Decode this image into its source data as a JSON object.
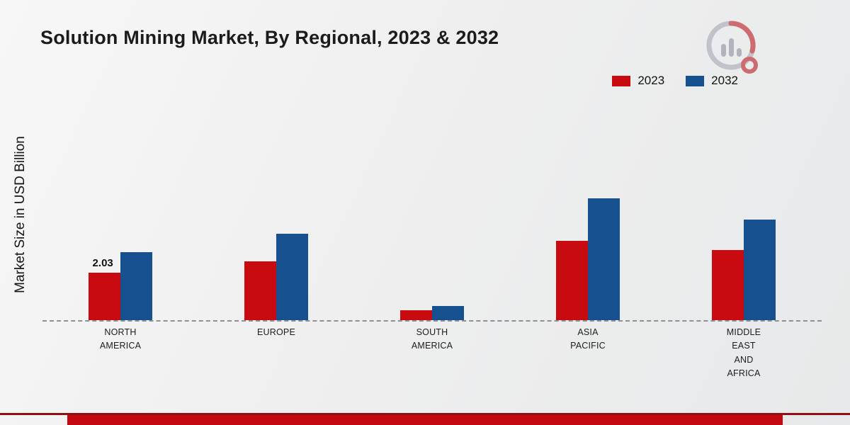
{
  "title": "Solution Mining Market, By Regional, 2023 & 2032",
  "ylabel": "Market Size in USD Billion",
  "legend": [
    {
      "label": "2023",
      "color": "#c70b10"
    },
    {
      "label": "2032",
      "color": "#17508e"
    }
  ],
  "chart_data": {
    "type": "bar",
    "title": "Solution Mining Market, By Regional, 2023 & 2032",
    "ylabel": "Market Size in USD Billion",
    "xlabel": "",
    "ylim": [
      0,
      5.5
    ],
    "grid": false,
    "legend_position": "top-right",
    "baseline_style": "dashed",
    "categories": [
      [
        "NORTH",
        "AMERICA"
      ],
      [
        "EUROPE"
      ],
      [
        "SOUTH",
        "AMERICA"
      ],
      [
        "ASIA",
        "PACIFIC"
      ],
      [
        "MIDDLE",
        "EAST",
        "AND",
        "AFRICA"
      ]
    ],
    "series": [
      {
        "name": "2023",
        "color": "#c70b10",
        "values": [
          2.03,
          2.5,
          0.42,
          3.4,
          3.0
        ],
        "labels": [
          "2.03",
          "",
          "",
          "",
          ""
        ]
      },
      {
        "name": "2032",
        "color": "#17508e",
        "values": [
          2.9,
          3.7,
          0.6,
          5.2,
          4.3
        ],
        "labels": [
          "",
          "",
          "",
          "",
          ""
        ]
      }
    ]
  }
}
